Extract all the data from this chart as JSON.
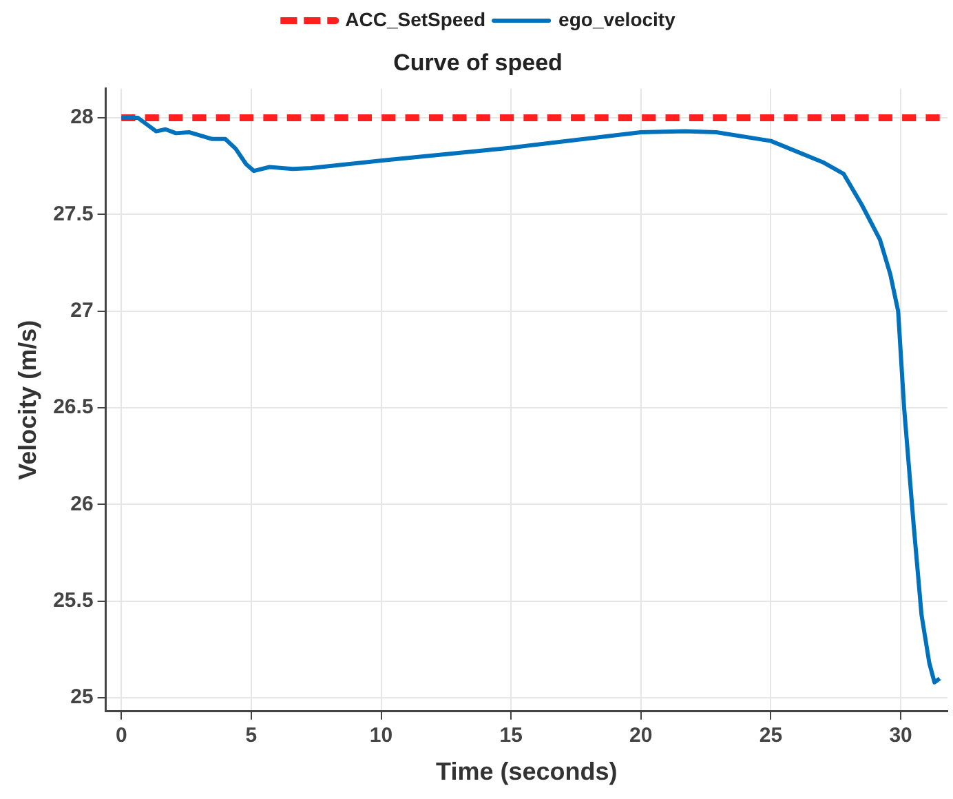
{
  "chart_data": {
    "type": "line",
    "title": "Curve of speed",
    "xlabel": "Time (seconds)",
    "ylabel": "Velocity (m/s)",
    "xlim": [
      -0.6,
      31.8
    ],
    "xticks": [
      0,
      5,
      10,
      15,
      20,
      25,
      30
    ],
    "ylim": [
      24.93,
      28.15
    ],
    "yticks": [
      25,
      25.5,
      26,
      26.5,
      27,
      27.5,
      28
    ],
    "grid": true,
    "legend": "top",
    "marker": "none",
    "series": [
      {
        "name": "ACC_SetSpeed",
        "color": "#ff1f1f",
        "line_style": "dashed",
        "x": [
          0,
          31.5
        ],
        "values": [
          28,
          28
        ]
      },
      {
        "name": "ego_velocity",
        "color": "#0072bd",
        "line_style": "solid",
        "x": [
          0,
          0.63,
          1.34,
          1.7,
          2.1,
          2.6,
          3.5,
          4.0,
          4.4,
          4.8,
          5.1,
          5.7,
          6.6,
          7.3,
          10.1,
          15.0,
          17.2,
          20.0,
          21.7,
          22.9,
          25.0,
          27.0,
          27.8,
          28.5,
          29.2,
          29.6,
          29.9,
          30.13,
          30.5,
          30.8,
          31.1,
          31.3,
          31.5
        ],
        "values": [
          28,
          28,
          27.93,
          27.94,
          27.92,
          27.925,
          27.89,
          27.89,
          27.84,
          27.76,
          27.725,
          27.745,
          27.735,
          27.74,
          27.78,
          27.845,
          27.88,
          27.925,
          27.93,
          27.925,
          27.88,
          27.77,
          27.71,
          27.55,
          27.37,
          27.19,
          27.0,
          26.5,
          25.89,
          25.43,
          25.18,
          25.08,
          25.1
        ]
      }
    ]
  }
}
